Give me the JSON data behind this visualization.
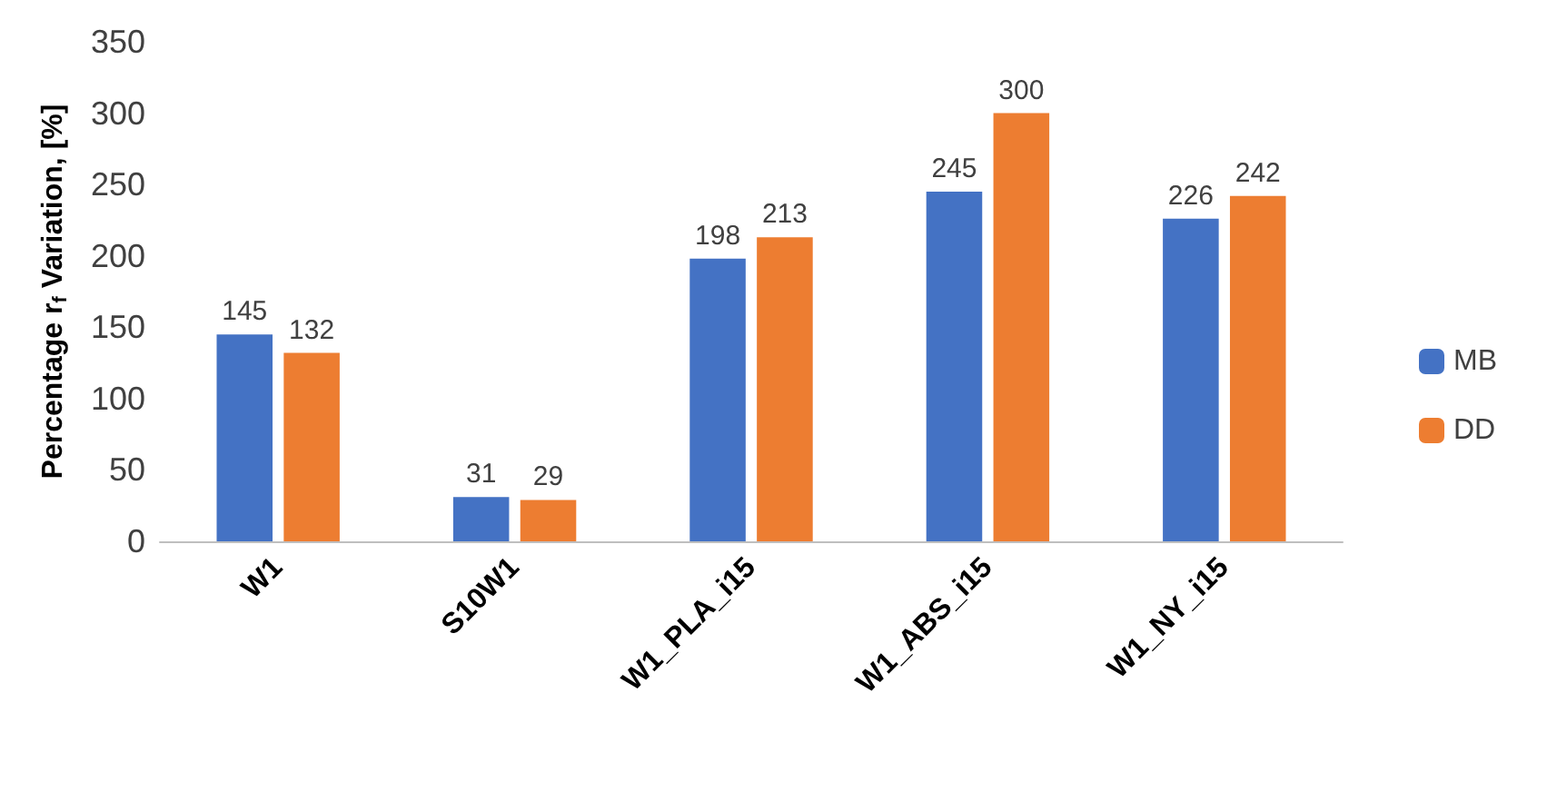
{
  "chart_data": {
    "type": "bar",
    "ylabel": "Percentage r$_{f}$ Variation, [%]",
    "categories": [
      "W1",
      "S10W1",
      "W1_PLA_i15",
      "W1_ABS_i15",
      "W1_NY_i15"
    ],
    "series": [
      {
        "name": "MB",
        "color": "#4472c4",
        "values": [
          145,
          31,
          198,
          245,
          226
        ]
      },
      {
        "name": "DD",
        "color": "#ed7d31",
        "values": [
          132,
          29,
          213,
          300,
          242
        ]
      }
    ],
    "ylim": [
      0,
      350
    ],
    "yticks": [
      0,
      50,
      100,
      150,
      200,
      250,
      300,
      350
    ],
    "grid": false,
    "legend": "right",
    "data_labels": true
  }
}
